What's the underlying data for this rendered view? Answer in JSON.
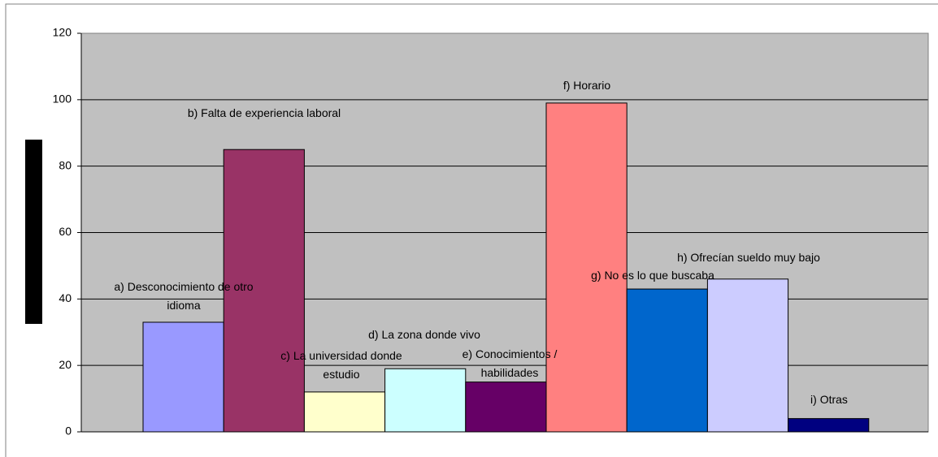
{
  "chart_data": {
    "type": "bar",
    "categories": [
      "a) Desconocimiento de otro idioma",
      "b) Falta de experiencia laboral",
      "c) La universidad donde estudio",
      "d) La zona donde vivo",
      "e) Conocimientos / habilidades",
      "f) Horario",
      "g) No es lo que buscaba",
      "h) Ofrecían sueldo muy bajo",
      "i) Otras"
    ],
    "values": [
      33,
      85,
      12,
      19,
      15,
      99,
      43,
      46,
      4
    ],
    "colors": [
      "#9999ff",
      "#993366",
      "#ffffcc",
      "#ccffff",
      "#660066",
      "#ff8080",
      "#0066cc",
      "#ccccff",
      "#000080"
    ],
    "ylim": [
      0,
      120
    ],
    "yticks": [
      0,
      20,
      40,
      60,
      80,
      100,
      120
    ],
    "grid": true
  }
}
